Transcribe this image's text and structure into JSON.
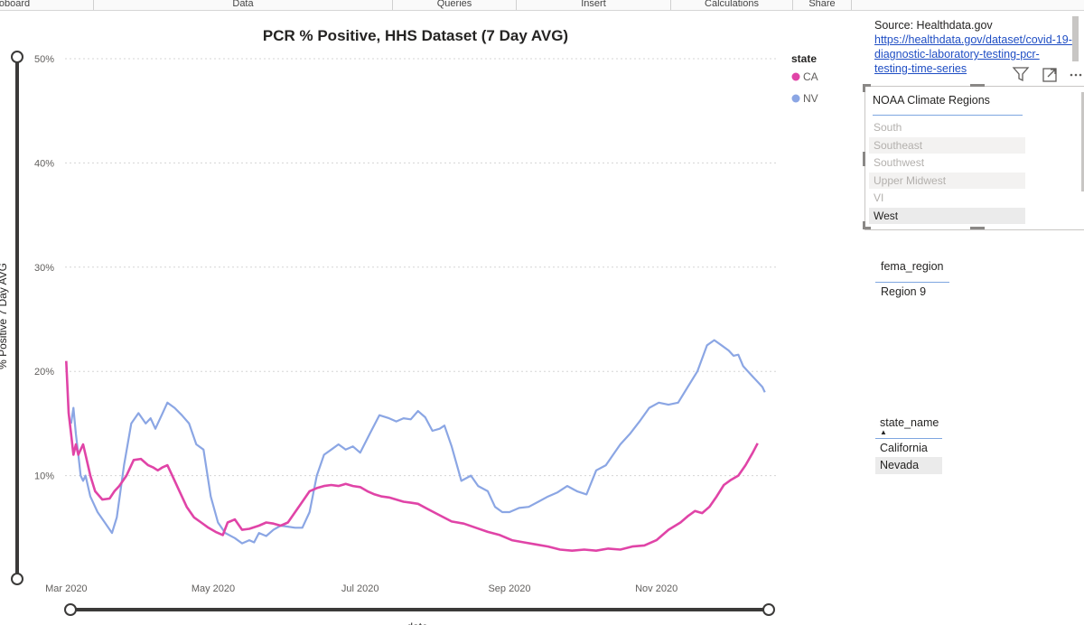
{
  "ribbon": {
    "tabs": [
      "oboard",
      "Data",
      "Queries",
      "Insert",
      "Calculations",
      "Share"
    ]
  },
  "chart_data": {
    "type": "line",
    "title": "PCR % Positive, HHS Dataset (7 Day AVG)",
    "xlabel": "date",
    "ylabel": "% Positive 7 Day AVG",
    "ylim": [
      0,
      50
    ],
    "y_ticks": [
      "10%",
      "20%",
      "30%",
      "40%",
      "50%"
    ],
    "x_ticks": [
      {
        "day": 0,
        "label": "Mar 2020"
      },
      {
        "day": 61,
        "label": "May 2020"
      },
      {
        "day": 122,
        "label": "Jul 2020"
      },
      {
        "day": 184,
        "label": "Sep 2020"
      },
      {
        "day": 245,
        "label": "Nov 2020"
      }
    ],
    "x_range_days": [
      -5,
      295
    ],
    "legend_title": "state",
    "series": [
      {
        "name": "CA",
        "color": "#e044a7",
        "x": [
          0,
          1,
          2,
          3,
          4,
          5,
          6,
          7,
          8,
          10,
          12,
          15,
          18,
          20,
          22,
          25,
          28,
          31,
          34,
          36,
          38,
          40,
          42,
          44,
          47,
          50,
          53,
          56,
          59,
          62,
          65,
          67,
          70,
          73,
          76,
          80,
          83,
          86,
          89,
          92,
          95,
          98,
          101,
          104,
          107,
          110,
          113,
          116,
          119,
          122,
          125,
          128,
          131,
          134,
          137,
          140,
          143,
          146,
          150,
          155,
          160,
          165,
          170,
          175,
          180,
          185,
          190,
          195,
          200,
          205,
          210,
          215,
          220,
          225,
          230,
          235,
          240,
          245,
          250,
          255,
          258,
          261,
          264,
          267,
          270,
          273,
          276,
          279,
          282,
          285,
          287
        ],
        "y": [
          21,
          16,
          14,
          12,
          13,
          12,
          12.5,
          13,
          12,
          10,
          8.5,
          7.7,
          7.8,
          8.5,
          9,
          10,
          11.5,
          11.6,
          11,
          10.8,
          10.5,
          10.8,
          11,
          10,
          8.5,
          7,
          6,
          5.5,
          5,
          4.6,
          4.3,
          5.5,
          5.8,
          4.8,
          4.9,
          5.2,
          5.5,
          5.4,
          5.2,
          5.5,
          6.5,
          7.5,
          8.5,
          8.8,
          9,
          9.1,
          9,
          9.2,
          9,
          8.9,
          8.5,
          8.2,
          8,
          7.9,
          7.7,
          7.5,
          7.4,
          7.3,
          6.8,
          6.2,
          5.6,
          5.4,
          5.0,
          4.6,
          4.3,
          3.8,
          3.6,
          3.4,
          3.2,
          2.9,
          2.8,
          2.9,
          2.8,
          3.0,
          2.9,
          3.2,
          3.3,
          3.8,
          4.8,
          5.5,
          6.1,
          6.6,
          6.4,
          7.0,
          8.0,
          9.1,
          9.6,
          10.0,
          11.0,
          12.2,
          13.1
        ]
      },
      {
        "name": "NV",
        "color": "#8ba6e4",
        "x": [
          2,
          3,
          4,
          5,
          6,
          7,
          8,
          10,
          13,
          16,
          19,
          21,
          24,
          27,
          30,
          33,
          35,
          37,
          40,
          42,
          45,
          48,
          51,
          54,
          57,
          60,
          63,
          66,
          70,
          73,
          76,
          78,
          80,
          83,
          86,
          89,
          92,
          95,
          98,
          101,
          104,
          107,
          110,
          113,
          116,
          119,
          122,
          126,
          130,
          134,
          137,
          140,
          143,
          146,
          149,
          152,
          155,
          157,
          160,
          164,
          168,
          171,
          175,
          178,
          181,
          184,
          188,
          192,
          196,
          200,
          204,
          208,
          212,
          216,
          220,
          224,
          227,
          230,
          234,
          238,
          242,
          246,
          250,
          254,
          258,
          262,
          266,
          269,
          272,
          275,
          277,
          279,
          281,
          283,
          285,
          287,
          289,
          290
        ],
        "y": [
          15,
          16.5,
          14,
          12,
          10,
          9.5,
          10,
          8,
          6.5,
          5.5,
          4.5,
          6,
          11,
          15,
          16,
          15,
          15.5,
          14.5,
          16,
          17,
          16.5,
          15.8,
          15,
          13,
          12.5,
          8,
          5.5,
          4.5,
          4,
          3.5,
          3.8,
          3.6,
          4.5,
          4.2,
          4.8,
          5.2,
          5.1,
          5.0,
          5.0,
          6.5,
          10,
          12,
          12.5,
          13,
          12.5,
          12.8,
          12.2,
          14,
          15.8,
          15.5,
          15.2,
          15.5,
          15.4,
          16.2,
          15.6,
          14.3,
          14.5,
          14.8,
          12.8,
          9.5,
          10,
          9,
          8.5,
          7.0,
          6.5,
          6.5,
          6.9,
          7.0,
          7.5,
          8.0,
          8.4,
          9.0,
          8.5,
          8.2,
          10.5,
          11.0,
          12.0,
          13.0,
          14.0,
          15.2,
          16.5,
          17.0,
          16.8,
          17.0,
          18.5,
          20.0,
          22.5,
          23.0,
          22.5,
          22.0,
          21.5,
          21.6,
          20.5,
          20.0,
          19.5,
          19.0,
          18.5,
          18.0
        ]
      }
    ]
  },
  "source": {
    "prefix": "Source: Healthdata.gov",
    "link": "https://healthdata.gov/dataset/covid-19-diagnostic-laboratory-testing-pcr-testing-time-series"
  },
  "climate_slicer": {
    "header": "NOAA Climate Regions",
    "items": [
      "South",
      "Southeast",
      "Southwest",
      "Upper Midwest",
      "VI",
      "West"
    ],
    "selected": "West"
  },
  "fema_slicer": {
    "header": "fema_region",
    "value": "Region 9"
  },
  "state_slicer": {
    "header": "state_name",
    "items": [
      "California",
      "Nevada"
    ],
    "selected": "Nevada"
  }
}
